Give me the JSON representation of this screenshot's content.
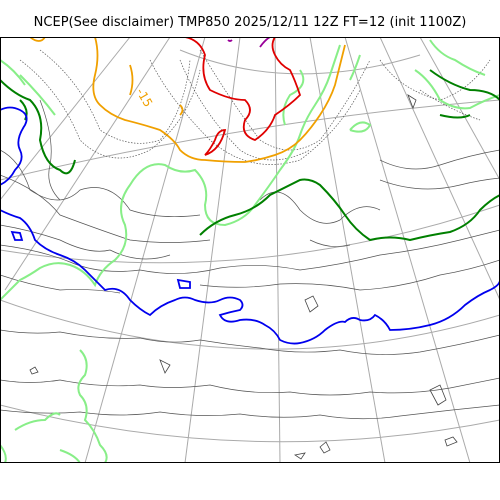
{
  "title": "NCEP(See disclaimer) TMP850 2025/12/11 12Z FT=12 (init 1100Z)",
  "contour_label": "-15",
  "colors": {
    "frame": "#000000",
    "graticule": "#aaaaaa",
    "coast": "#444444",
    "isotherm_fine": "#555555",
    "isotherm_cold_red": "#e00000",
    "isotherm_orange": "#f0a000",
    "isotherm_lightgreen": "#88ee88",
    "isotherm_darkgreen": "#008000",
    "isotherm_blue": "#0000ee",
    "isotherm_purple": "#990099"
  }
}
